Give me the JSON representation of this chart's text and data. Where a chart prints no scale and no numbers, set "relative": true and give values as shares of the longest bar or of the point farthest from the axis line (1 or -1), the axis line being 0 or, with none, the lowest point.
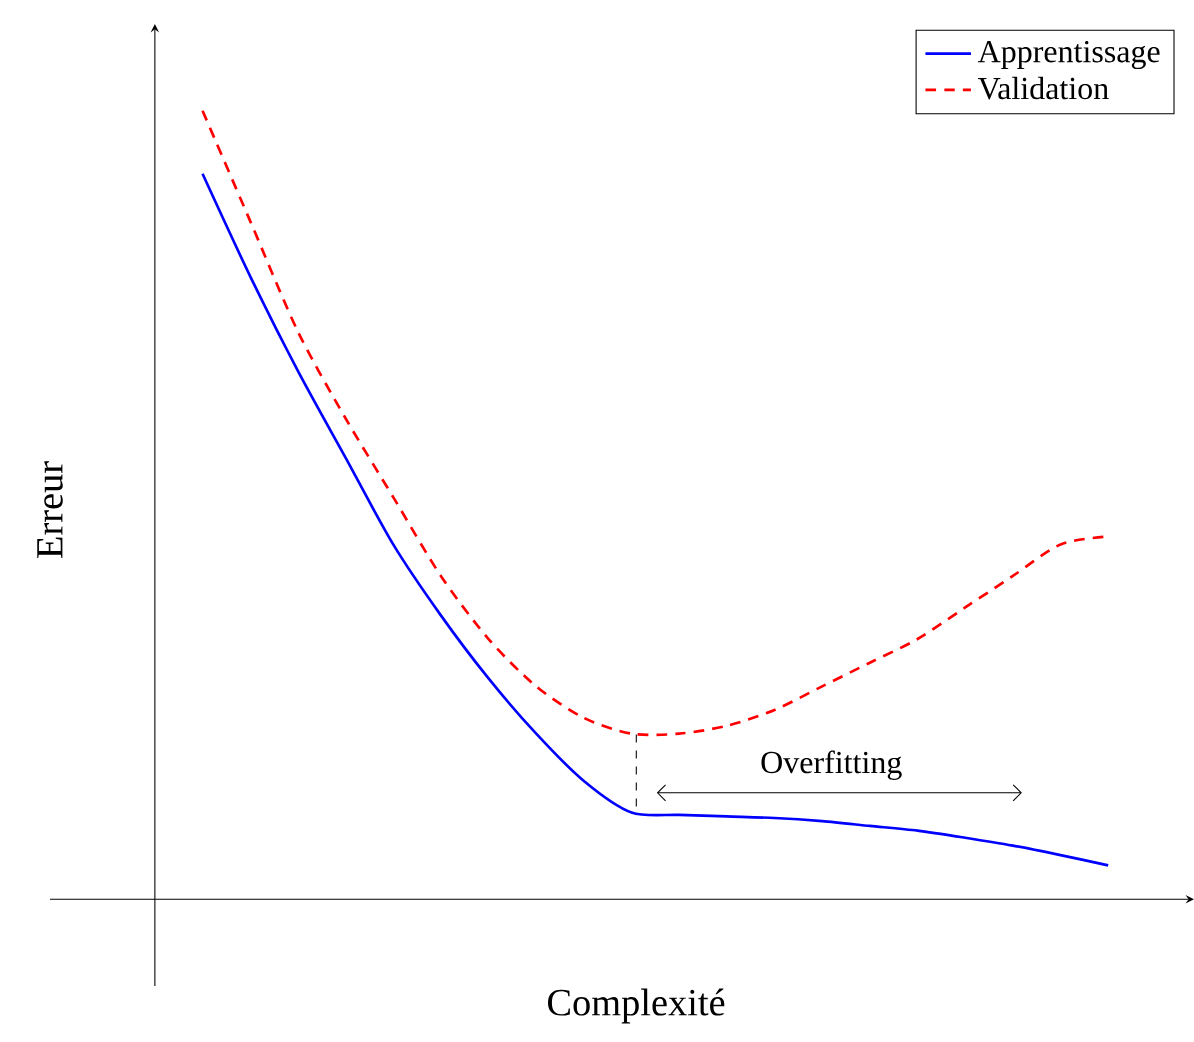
{
  "chart_data": {
    "type": "line",
    "relative": true,
    "xlabel": "Complexité",
    "ylabel": "Erreur",
    "categories": [
      null,
      null,
      null,
      null,
      null,
      null,
      null,
      null,
      null,
      null,
      null,
      null,
      null,
      null,
      null,
      null,
      null,
      null,
      null,
      null
    ],
    "series": [
      {
        "name": "Apprentissage",
        "color": "#0000ff",
        "line_style": "solid",
        "values": [
          0.92,
          0.79,
          0.67,
          0.56,
          0.45,
          0.36,
          0.28,
          0.21,
          0.15,
          0.11,
          0.107,
          0.105,
          0.103,
          0.099,
          0.093,
          0.087,
          0.078,
          0.068,
          0.056,
          0.043
        ]
      },
      {
        "name": "Validation",
        "color": "#ff0000",
        "line_style": "dashed",
        "values": [
          1.0,
          0.86,
          0.72,
          0.61,
          0.51,
          0.41,
          0.33,
          0.27,
          0.23,
          0.21,
          0.21,
          0.22,
          0.24,
          0.27,
          0.3,
          0.33,
          0.37,
          0.41,
          0.45,
          0.46
        ]
      }
    ],
    "annotations": [
      "Overfitting"
    ],
    "legend": "top right"
  }
}
